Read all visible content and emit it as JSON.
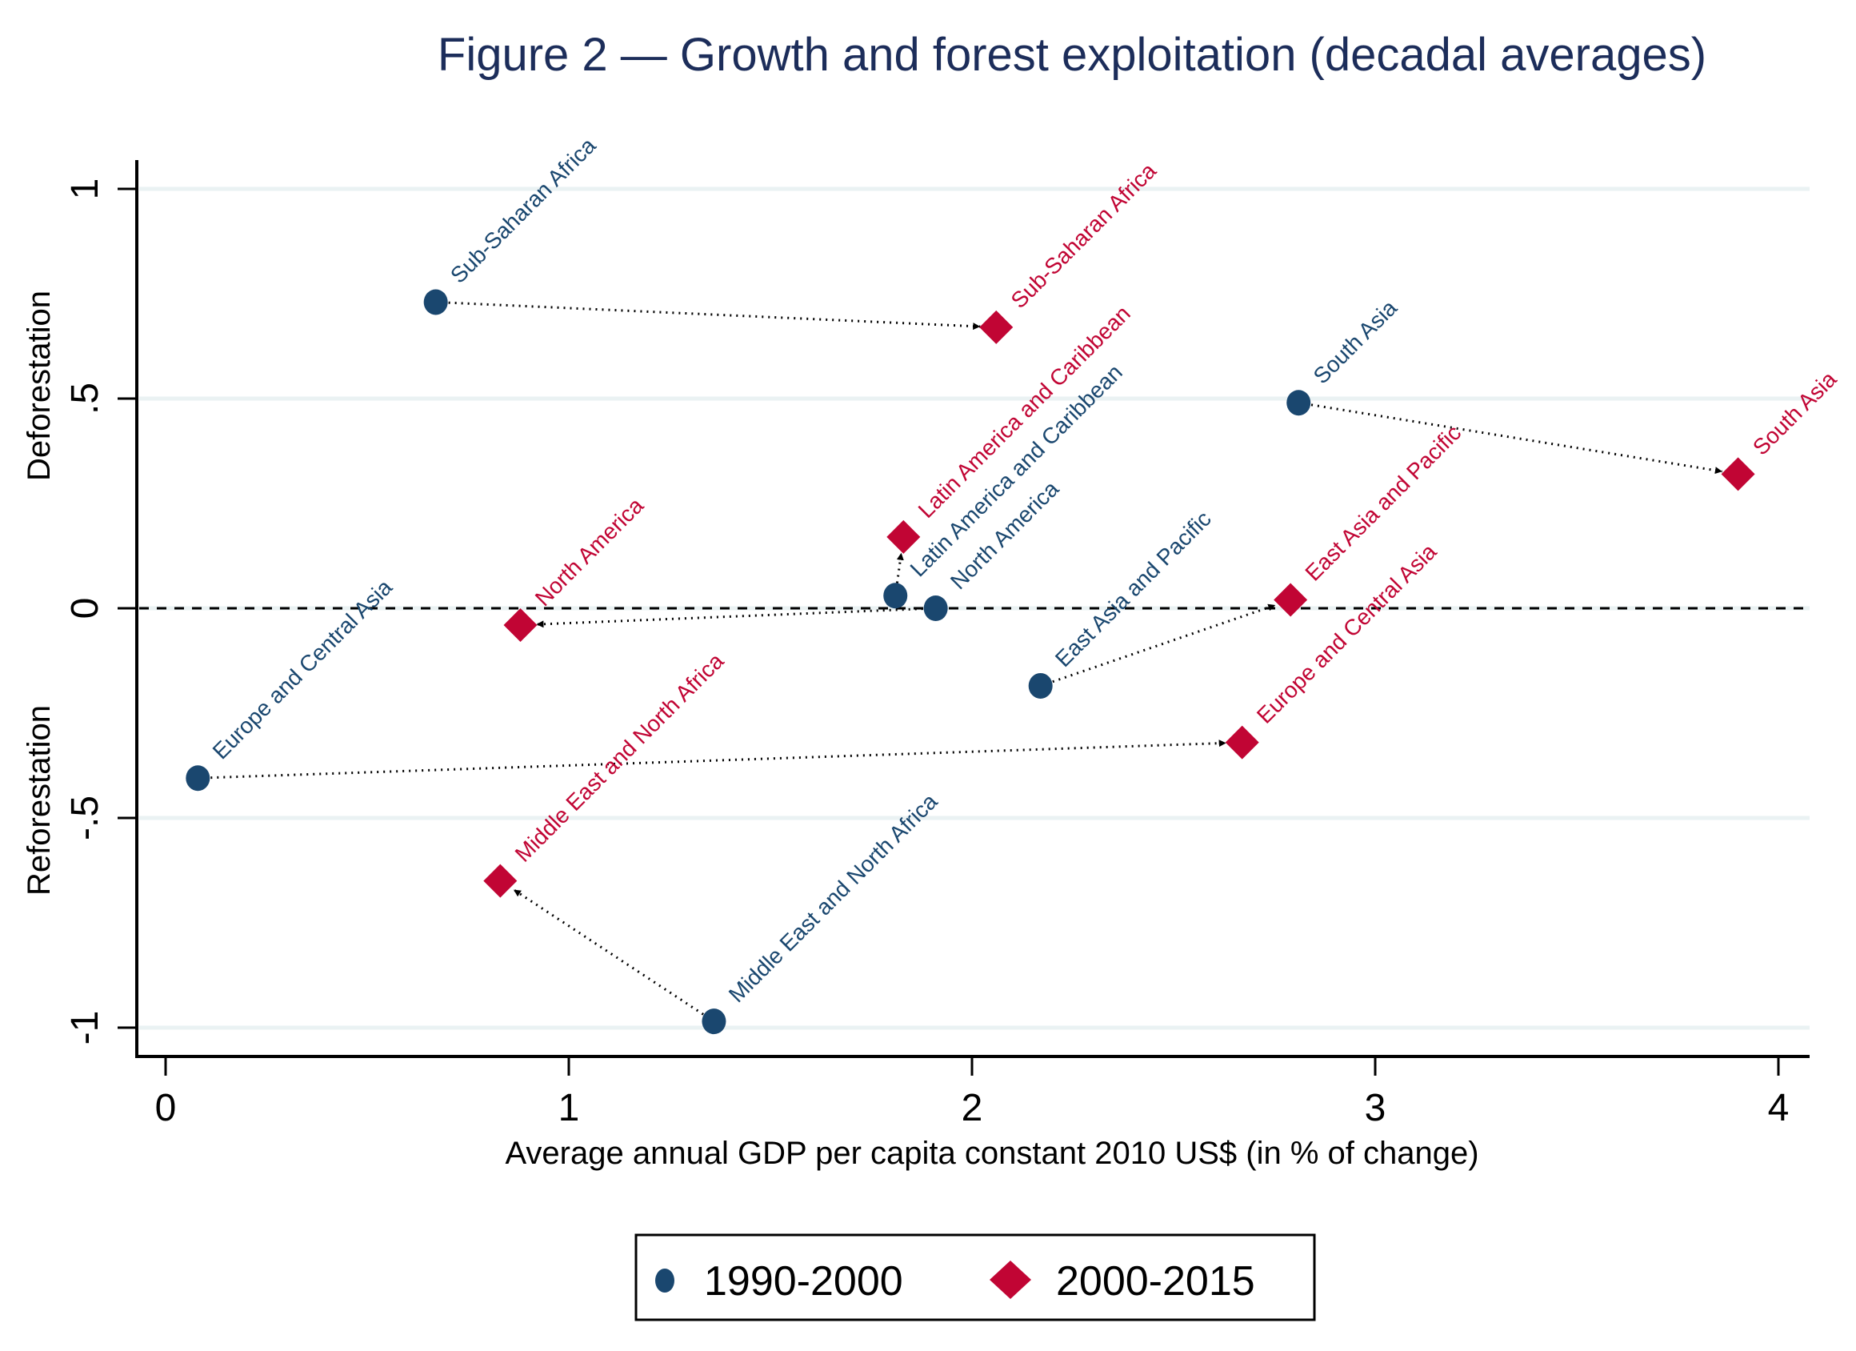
{
  "chart_data": {
    "type": "scatter",
    "title": "Figure 2 — Growth and forest exploitation (decadal averages)",
    "xlabel": "Average annual GDP per capita constant 2010 US$ (in % of change)",
    "ylabel_top": "Deforestation",
    "ylabel_bottom": "Reforestation",
    "xlim": [
      -0.07,
      4.08
    ],
    "ylim": [
      -1.07,
      1.07
    ],
    "x_ticks": [
      0,
      1,
      2,
      3,
      4
    ],
    "x_tick_labels": [
      "0",
      "1",
      "2",
      "3",
      "4"
    ],
    "y_ticks": [
      1,
      0.5,
      0,
      -0.5,
      -1
    ],
    "y_tick_labels": [
      "1",
      ".5",
      "0",
      "-.5",
      "-1"
    ],
    "grid": true,
    "reference_line_y": 0,
    "legend_position": "bottom",
    "colors": {
      "series_1990": "#1a476f",
      "series_2000": "#c10534",
      "arrow": "#000000",
      "title": "#1c2d5a",
      "grid": "#eaf2f3"
    },
    "series": [
      {
        "name": "1990-2000",
        "marker": "circle",
        "points": [
          {
            "region": "Sub-Saharan Africa",
            "x": 0.67,
            "y": 0.73
          },
          {
            "region": "South Asia",
            "x": 2.81,
            "y": 0.49
          },
          {
            "region": "Latin America and Caribbean",
            "x": 1.81,
            "y": 0.03
          },
          {
            "region": "North America",
            "x": 1.91,
            "y": 0.0
          },
          {
            "region": "East Asia and Pacific",
            "x": 2.17,
            "y": -0.185
          },
          {
            "region": "Europe and Central Asia",
            "x": 0.08,
            "y": -0.405
          },
          {
            "region": "Middle East and North Africa",
            "x": 1.36,
            "y": -0.985
          }
        ]
      },
      {
        "name": "2000-2015",
        "marker": "diamond",
        "points": [
          {
            "region": "Sub-Saharan Africa",
            "x": 2.06,
            "y": 0.67
          },
          {
            "region": "South Asia",
            "x": 3.9,
            "y": 0.32
          },
          {
            "region": "Latin America and Caribbean",
            "x": 1.83,
            "y": 0.17
          },
          {
            "region": "North America",
            "x": 0.88,
            "y": -0.04
          },
          {
            "region": "East Asia and Pacific",
            "x": 2.79,
            "y": 0.02
          },
          {
            "region": "Europe and Central Asia",
            "x": 2.67,
            "y": -0.32
          },
          {
            "region": "Middle East and North Africa",
            "x": 0.83,
            "y": -0.65
          }
        ]
      }
    ],
    "arrows": "each region: dotted arrow from 1990-2000 point to 2000-2015 point"
  },
  "legend": {
    "items": [
      {
        "label": "1990-2000",
        "marker": "circle"
      },
      {
        "label": "2000-2015",
        "marker": "diamond"
      }
    ]
  }
}
